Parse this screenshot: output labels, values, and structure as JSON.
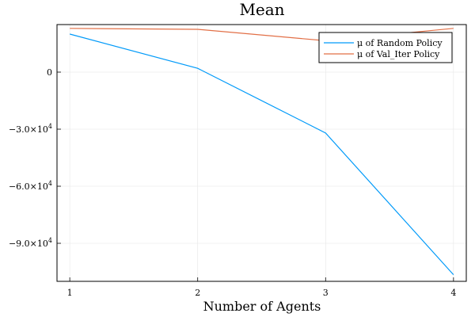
{
  "chart_data": {
    "type": "line",
    "title": "Mean",
    "xlabel": "Number of Agents",
    "ylabel": "",
    "x": [
      1,
      2,
      3,
      4
    ],
    "xticks": [
      1,
      2,
      3,
      4
    ],
    "xlim": [
      0.9,
      4.1
    ],
    "yticks": [
      {
        "value": 0,
        "mantissa": "0",
        "exponent": ""
      },
      {
        "value": -30000,
        "mantissa": "−3.0×10",
        "exponent": "4"
      },
      {
        "value": -60000,
        "mantissa": "−6.0×10",
        "exponent": "4"
      },
      {
        "value": -90000,
        "mantissa": "−9.0×10",
        "exponent": "4"
      }
    ],
    "ylim": [
      -110000,
      25000
    ],
    "grid": true,
    "legend_position": "top-right",
    "series": [
      {
        "name": "μ of Random Policy",
        "color": "#009af9",
        "values": [
          20000,
          2000,
          -32000,
          -106500
        ]
      },
      {
        "name": "μ of Val_Iter Policy",
        "color": "#e26f46",
        "values": [
          23000,
          22500,
          16500,
          23000
        ]
      }
    ]
  }
}
